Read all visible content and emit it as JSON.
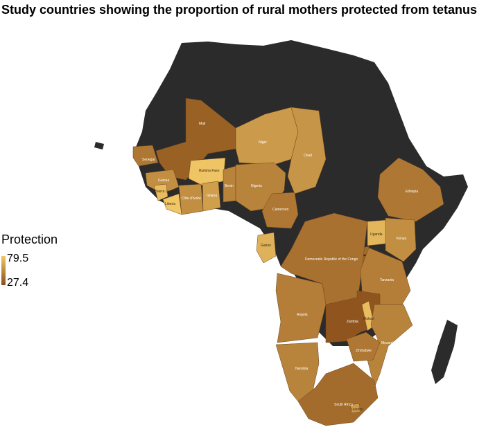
{
  "title": "Study countries showing the proportion of rural mothers protected from tetanus",
  "legend": {
    "title": "Protection",
    "max": "79.5",
    "min": "27.4"
  },
  "colors": {
    "no_data": "#2b2b2b",
    "high": "#f2c766",
    "low": "#8b4f1a"
  },
  "countries": [
    {
      "name": "Mali",
      "value": 35
    },
    {
      "name": "Senegal",
      "value": 45
    },
    {
      "name": "Niger",
      "value": 60
    },
    {
      "name": "Chad",
      "value": 58
    },
    {
      "name": "Burkina Faso",
      "value": 78
    },
    {
      "name": "Guinea",
      "value": 55
    },
    {
      "name": "Sierra Leone",
      "value": 75
    },
    {
      "name": "Liberia",
      "value": 79
    },
    {
      "name": "Côte d'Ivoire",
      "value": 55
    },
    {
      "name": "Ghana",
      "value": 62
    },
    {
      "name": "Benin",
      "value": 50
    },
    {
      "name": "Nigeria",
      "value": 50
    },
    {
      "name": "Cameroon",
      "value": 45
    },
    {
      "name": "Gabon",
      "value": 70
    },
    {
      "name": "Ethiopia",
      "value": 45
    },
    {
      "name": "Uganda",
      "value": 72
    },
    {
      "name": "Kenya",
      "value": 55
    },
    {
      "name": "Rwanda",
      "value": 40
    },
    {
      "name": "Burundi",
      "value": 38
    },
    {
      "name": "Democratic Republic of the Congo",
      "value": 42
    },
    {
      "name": "Tanzania",
      "value": 48
    },
    {
      "name": "Angola",
      "value": 48
    },
    {
      "name": "Zambia",
      "value": 30
    },
    {
      "name": "Malawi",
      "value": 75
    },
    {
      "name": "Mozambique",
      "value": 50
    },
    {
      "name": "Zimbabwe",
      "value": 45
    },
    {
      "name": "Namibia",
      "value": 50
    },
    {
      "name": "South Africa",
      "value": 40
    },
    {
      "name": "Lesotho",
      "value": 60
    }
  ]
}
